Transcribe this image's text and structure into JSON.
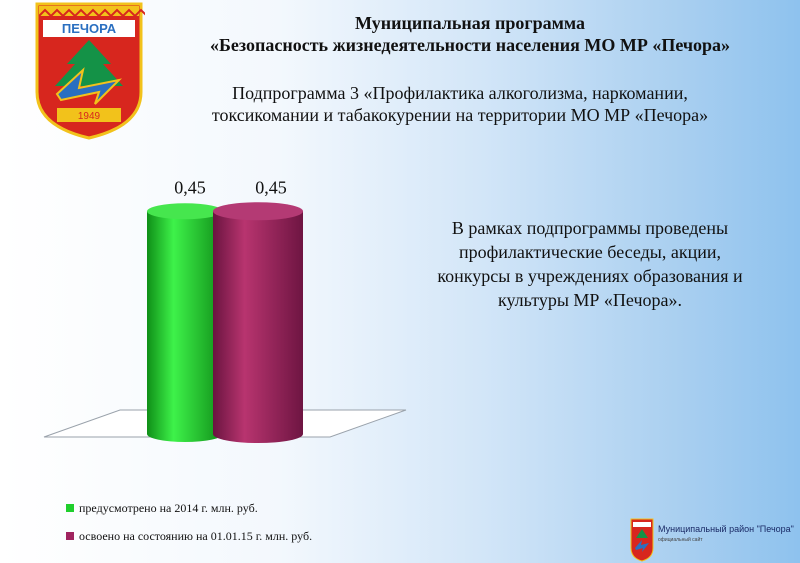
{
  "slide": {
    "title_line1": "Муниципальная программа",
    "title_line2": "«Безопасность жизнедеятельности населения  МО МР «Печора»",
    "subtitle_line1": "Подпрограмма 3 «Профилактика алкоголизма, наркомании,",
    "subtitle_line2": "токсикомании и табакокурении на территории МО МР «Печора»",
    "note_lines": [
      "В рамках подпрограммы проведены",
      "профилактические беседы, акции,",
      "конкурсы в учреждениях образования и",
      "культуры МР «Печора»."
    ]
  },
  "crest": {
    "city": "ПЕЧОРА",
    "year": "1949",
    "colors": {
      "red": "#d7261e",
      "gold": "#f2c21b",
      "green": "#149247",
      "blue": "#2a6fc0"
    }
  },
  "chart_data": {
    "type": "bar",
    "style": "3d-cylinder",
    "categories": [
      ""
    ],
    "series": [
      {
        "name": "предусмотрено на 2014 г. млн. руб.",
        "values": [
          0.45
        ],
        "color": "#1fcf2c",
        "label": "0,45"
      },
      {
        "name": "освоено на состоянию на 01.01.15 г. млн. руб.",
        "values": [
          0.45
        ],
        "color": "#a0245f",
        "label": "0,45"
      }
    ],
    "ylim": [
      0,
      0.5
    ],
    "grid": false,
    "legend_position": "bottom-left"
  },
  "badge": {
    "text": "Муниципальный район \"Печора\"",
    "sub": "официальный сайт",
    "logo_word": "ПЕЧОРА"
  }
}
